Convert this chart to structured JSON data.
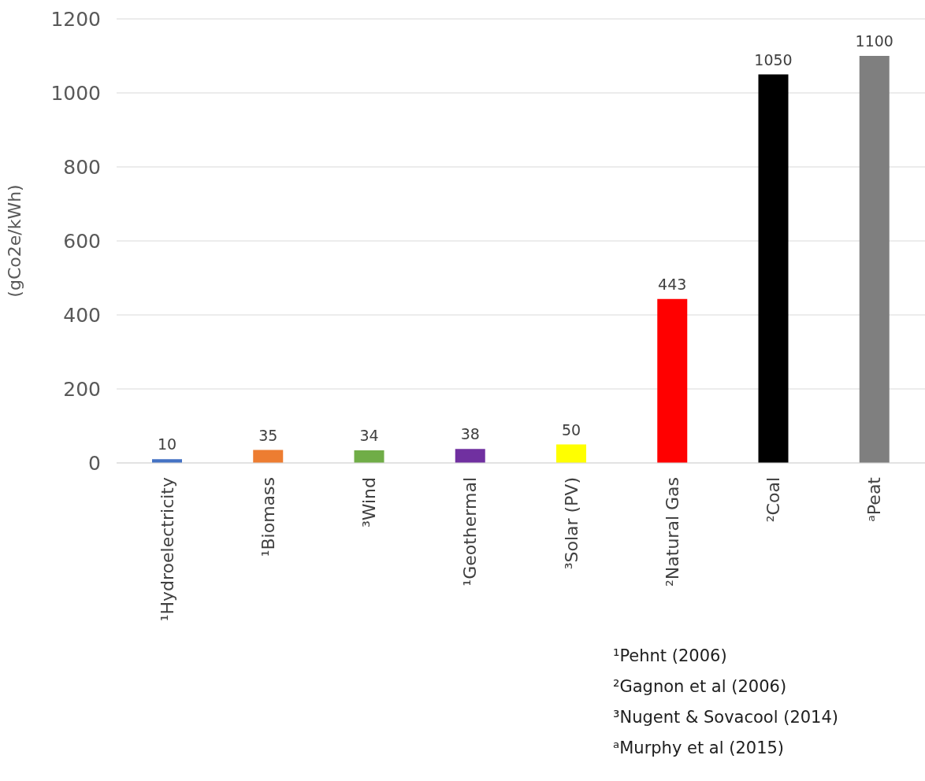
{
  "chart_data": {
    "type": "bar",
    "ylabel": "(gCo2e/kWh)",
    "categories": [
      "¹Hydroelectricity",
      "¹Biomass",
      "³Wind",
      "¹Geothermal",
      "³Solar (PV)",
      "²Natural Gas",
      "²Coal",
      "ᵃPeat"
    ],
    "values": [
      10,
      35,
      34,
      38,
      50,
      443,
      1050,
      1100
    ],
    "colors": [
      "#4472c4",
      "#ed7d31",
      "#70ad47",
      "#7030a0",
      "#ffff00",
      "#ff0000",
      "#000000",
      "#7f7f7f"
    ],
    "ylim": [
      0,
      1200
    ],
    "yticks": [
      0,
      200,
      400,
      600,
      800,
      1000,
      1200
    ],
    "grid": "y",
    "data_labels": true,
    "annotations": [
      "¹Pehnt (2006)",
      "²Gagnon et al (2006)",
      "³Nugent & Sovacool (2014)",
      "ᵃMurphy et al (2015)"
    ]
  }
}
